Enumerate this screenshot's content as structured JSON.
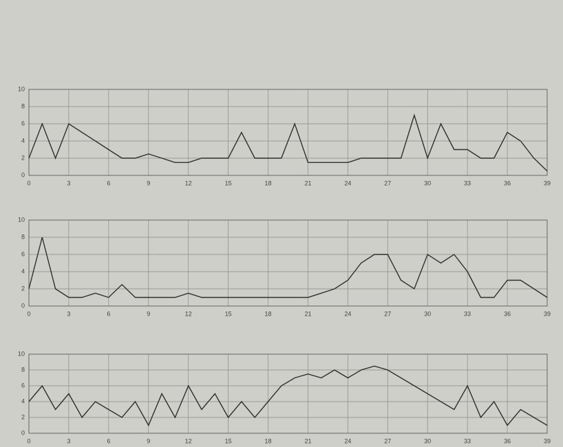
{
  "chart_data": [
    {
      "type": "line",
      "x": [
        0,
        1,
        2,
        3,
        4,
        5,
        6,
        7,
        8,
        9,
        10,
        11,
        12,
        13,
        14,
        15,
        16,
        17,
        18,
        19,
        20,
        21,
        22,
        23,
        24,
        25,
        26,
        27,
        28,
        29,
        30,
        31,
        32,
        33,
        34,
        35,
        36,
        37,
        38,
        39
      ],
      "series": [
        {
          "color": "#2f2f2f",
          "values": [
            2,
            6,
            2,
            6,
            5,
            4,
            3,
            2,
            2,
            2.5,
            2,
            1.5,
            1.5,
            2,
            2,
            2,
            5,
            2,
            2,
            2,
            6,
            1.5,
            1.5,
            1.5,
            1.5,
            2,
            2,
            2,
            2,
            7,
            2,
            6,
            3,
            3,
            2,
            2,
            5,
            4,
            2,
            0.5
          ]
        }
      ],
      "xlim": [
        0,
        39
      ],
      "xticks": [
        0,
        3,
        6,
        9,
        12,
        15,
        18,
        21,
        24,
        27,
        30,
        33,
        36,
        39
      ],
      "ylim": [
        0,
        10
      ],
      "yticks": [
        0,
        2,
        4,
        6,
        8,
        10
      ],
      "grid": true
    },
    {
      "type": "line",
      "x": [
        0,
        1,
        2,
        3,
        4,
        5,
        6,
        7,
        8,
        9,
        10,
        11,
        12,
        13,
        14,
        15,
        16,
        17,
        18,
        19,
        20,
        21,
        22,
        23,
        24,
        25,
        26,
        27,
        28,
        29,
        30,
        31,
        32,
        33,
        34,
        35,
        36,
        37,
        38,
        39
      ],
      "series": [
        {
          "color": "#2f2f2f",
          "values": [
            2,
            8,
            2,
            1,
            1,
            1.5,
            1,
            2.5,
            1,
            1,
            1,
            1,
            1.5,
            1,
            1,
            1,
            1,
            1,
            1,
            1,
            1,
            1,
            1.5,
            2,
            3,
            5,
            6,
            6,
            3,
            2,
            6,
            5,
            6,
            4,
            1,
            1,
            3,
            3,
            2,
            1
          ]
        }
      ],
      "xlim": [
        0,
        39
      ],
      "xticks": [
        0,
        3,
        6,
        9,
        12,
        15,
        18,
        21,
        24,
        27,
        30,
        33,
        36,
        39
      ],
      "ylim": [
        0,
        10
      ],
      "yticks": [
        0,
        2,
        4,
        6,
        8,
        10
      ],
      "grid": true
    },
    {
      "type": "line",
      "x": [
        0,
        1,
        2,
        3,
        4,
        5,
        6,
        7,
        8,
        9,
        10,
        11,
        12,
        13,
        14,
        15,
        16,
        17,
        18,
        19,
        20,
        21,
        22,
        23,
        24,
        25,
        26,
        27,
        28,
        29,
        30,
        31,
        32,
        33,
        34,
        35,
        36,
        37,
        38,
        39
      ],
      "series": [
        {
          "color": "#2f2f2f",
          "values": [
            4,
            6,
            3,
            5,
            2,
            4,
            3,
            2,
            4,
            1,
            5,
            2,
            6,
            3,
            5,
            2,
            4,
            2,
            4,
            6,
            7,
            7.5,
            7,
            8,
            7,
            8,
            8.5,
            8,
            7,
            6,
            5,
            4,
            3,
            6,
            2,
            4,
            1,
            3,
            2,
            1
          ]
        }
      ],
      "xlim": [
        0,
        39
      ],
      "xticks": [
        0,
        3,
        6,
        9,
        12,
        15,
        18,
        21,
        24,
        27,
        30,
        33,
        36,
        39
      ],
      "ylim": [
        0,
        10
      ],
      "yticks": [
        0,
        2,
        4,
        6,
        8,
        10
      ],
      "grid": true
    }
  ]
}
